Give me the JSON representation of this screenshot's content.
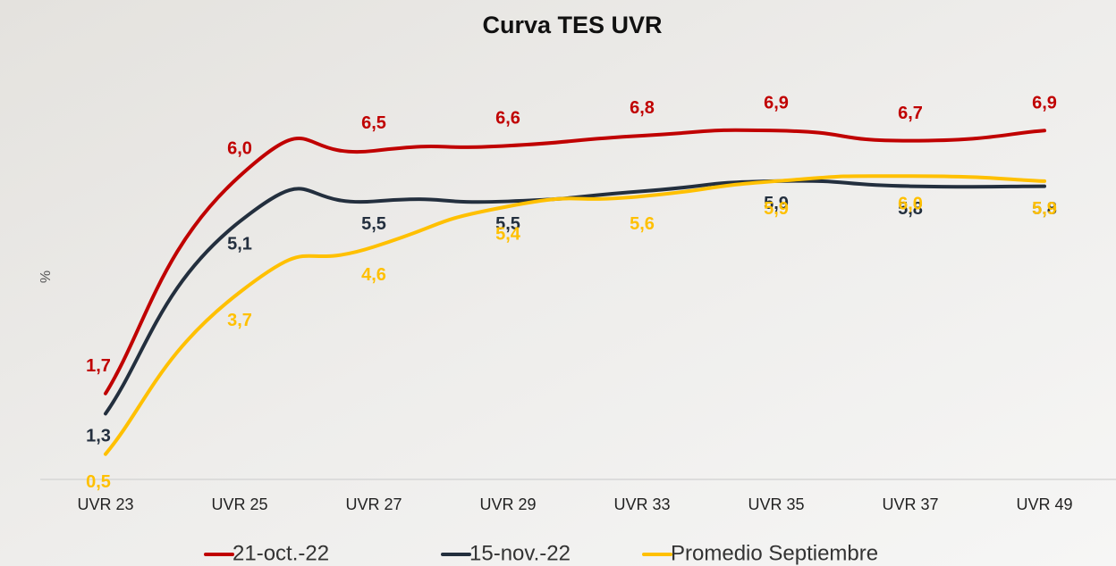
{
  "chart_data": {
    "type": "line",
    "title": "Curva TES UVR",
    "y_label": "%",
    "categories": [
      "UVR 23",
      "UVR 25",
      "UVR 27",
      "UVR 29",
      "UVR 33",
      "UVR 35",
      "UVR 37",
      "UVR 49"
    ],
    "ylim": [
      0,
      8
    ],
    "series": [
      {
        "name": "21-oct.-22",
        "color": "#c00000",
        "values": [
          1.7,
          6.0,
          6.5,
          6.6,
          6.8,
          6.9,
          6.7,
          6.9
        ],
        "value_labels": [
          "1,7",
          "6,0",
          "6,5",
          "6,6",
          "6,8",
          "6,9",
          "6,7",
          "6,9"
        ]
      },
      {
        "name": "15-nov.-22",
        "color": "#232f3e",
        "values": [
          1.3,
          5.1,
          5.5,
          5.5,
          5.7,
          5.9,
          5.8,
          5.8
        ],
        "value_labels": [
          "1,3",
          "5,1",
          "5,5",
          "5,5",
          null,
          "5,9",
          "5,8",
          "5,8"
        ]
      },
      {
        "name": "Promedio Septiembre",
        "color": "#ffc000",
        "values": [
          0.5,
          3.7,
          4.6,
          5.4,
          5.6,
          5.9,
          6.0,
          5.9
        ],
        "value_labels": [
          "0,5",
          "3,7",
          "4,6",
          "5,4",
          "5,6",
          "5,9",
          "6,0",
          "5,9"
        ]
      }
    ]
  }
}
